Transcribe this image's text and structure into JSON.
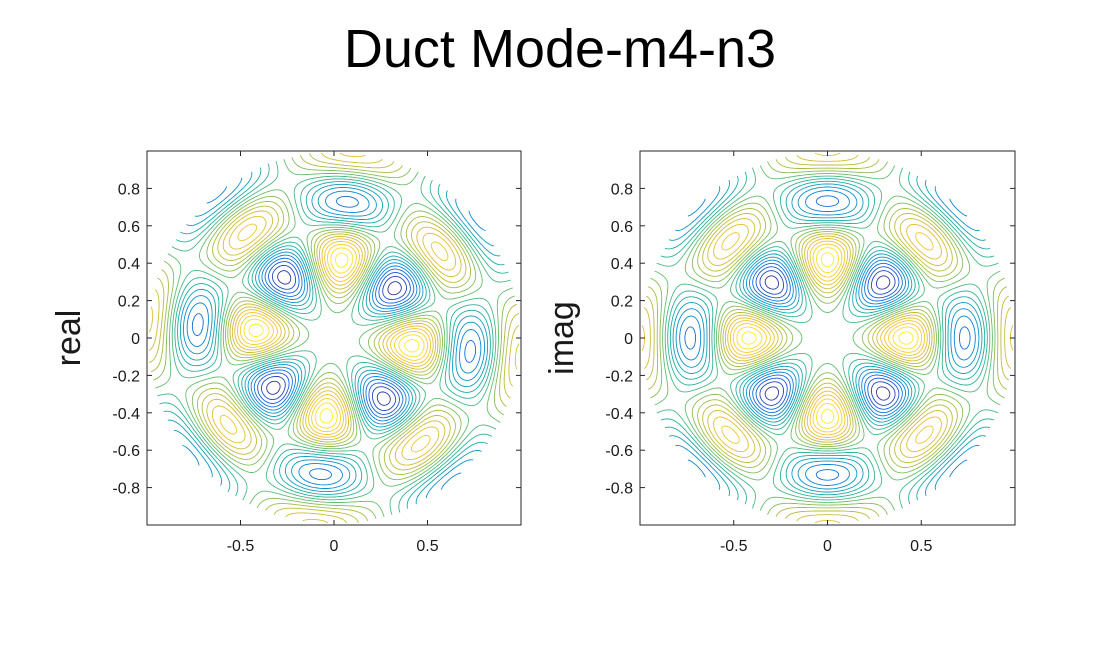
{
  "title": "Duct Mode-m4-n3",
  "chart_data": [
    {
      "type": "contour",
      "ylabel": "real",
      "xlim": [
        -1,
        1
      ],
      "ylim": [
        -1,
        1
      ],
      "xticks": [
        -0.5,
        0,
        0.5
      ],
      "xtick_labels": [
        "-0.5",
        "0",
        "0.5"
      ],
      "yticks": [
        0.8,
        0.6,
        0.4,
        0.2,
        0,
        -0.2,
        -0.4,
        -0.6,
        -0.8
      ],
      "ytick_labels": [
        "0.8",
        "0.6",
        "0.4",
        "0.2",
        "0",
        "-0.2",
        "-0.4",
        "-0.6",
        "-0.8"
      ],
      "field": "real part of duct mode, azimuthal order m=4, radial order n=3, over unit disk",
      "azimuthal_order": 4,
      "radial_order": 3,
      "levels": 20,
      "colormap": "parula",
      "grid": false
    },
    {
      "type": "contour",
      "ylabel": "imag",
      "xlim": [
        -1,
        1
      ],
      "ylim": [
        -1,
        1
      ],
      "xticks": [
        -0.5,
        0,
        0.5
      ],
      "xtick_labels": [
        "-0.5",
        "0",
        "0.5"
      ],
      "yticks": [
        0.8,
        0.6,
        0.4,
        0.2,
        0,
        -0.2,
        -0.4,
        -0.6,
        -0.8
      ],
      "ytick_labels": [
        "0.8",
        "0.6",
        "0.4",
        "0.2",
        "0",
        "-0.2",
        "-0.4",
        "-0.6",
        "-0.8"
      ],
      "field": "imaginary part of duct mode, azimuthal order m=4, radial order n=3, over unit disk",
      "azimuthal_order": 4,
      "radial_order": 3,
      "levels": 20,
      "colormap": "parula",
      "grid": false
    }
  ]
}
